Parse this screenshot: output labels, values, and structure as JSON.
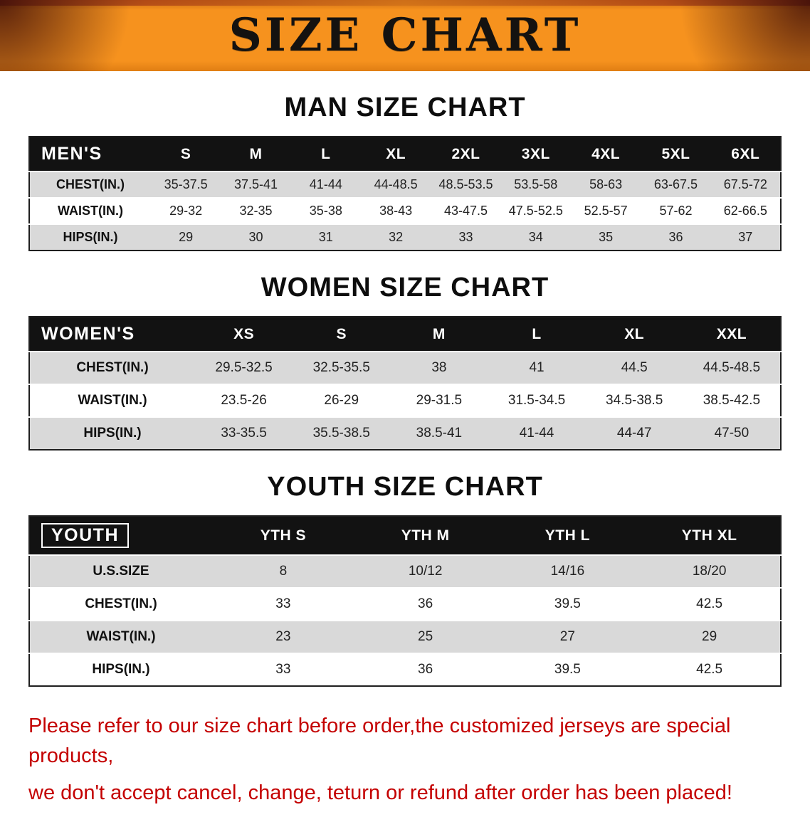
{
  "banner": {
    "title": "SIZE CHART",
    "bg_color": "#f6921e"
  },
  "sections": [
    {
      "heading": "MAN SIZE CHART",
      "table": {
        "header": [
          "MEN'S",
          "S",
          "M",
          "L",
          "XL",
          "2XL",
          "3XL",
          "4XL",
          "5XL",
          "6XL"
        ],
        "rows": [
          [
            "CHEST(IN.)",
            "35-37.5",
            "37.5-41",
            "41-44",
            "44-48.5",
            "48.5-53.5",
            "53.5-58",
            "58-63",
            "63-67.5",
            "67.5-72"
          ],
          [
            "WAIST(IN.)",
            "29-32",
            "32-35",
            "35-38",
            "38-43",
            "43-47.5",
            "47.5-52.5",
            "52.5-57",
            "57-62",
            "62-66.5"
          ],
          [
            "HIPS(IN.)",
            "29",
            "30",
            "31",
            "32",
            "33",
            "34",
            "35",
            "36",
            "37"
          ]
        ]
      }
    },
    {
      "heading": "WOMEN SIZE CHART",
      "table": {
        "header": [
          "WOMEN'S",
          "XS",
          "S",
          "M",
          "L",
          "XL",
          "XXL"
        ],
        "rows": [
          [
            "CHEST(IN.)",
            "29.5-32.5",
            "32.5-35.5",
            "38",
            "41",
            "44.5",
            "44.5-48.5"
          ],
          [
            "WAIST(IN.)",
            "23.5-26",
            "26-29",
            "29-31.5",
            "31.5-34.5",
            "34.5-38.5",
            "38.5-42.5"
          ],
          [
            "HIPS(IN.)",
            "33-35.5",
            "35.5-38.5",
            "38.5-41",
            "41-44",
            "44-47",
            "47-50"
          ]
        ]
      }
    },
    {
      "heading": "YOUTH SIZE CHART",
      "table": {
        "header": [
          "YOUTH",
          "YTH S",
          "YTH M",
          "YTH L",
          "YTH XL"
        ],
        "rows": [
          [
            "U.S.SIZE",
            "8",
            "10/12",
            "14/16",
            "18/20"
          ],
          [
            "CHEST(IN.)",
            "33",
            "36",
            "39.5",
            "42.5"
          ],
          [
            "WAIST(IN.)",
            "23",
            "25",
            "27",
            "29"
          ],
          [
            "HIPS(IN.)",
            "33",
            "36",
            "39.5",
            "42.5"
          ]
        ]
      }
    }
  ],
  "disclaimer": {
    "line1": "Please refer to our size chart before order,the customized jerseys are special products,",
    "line2": "we don't accept cancel, change, teturn or refund after order has been placed!",
    "color": "#c40000"
  }
}
